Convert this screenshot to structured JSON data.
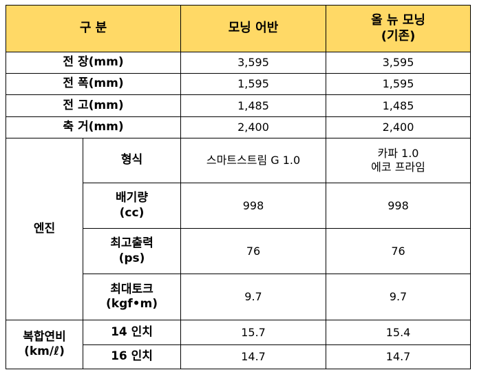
{
  "header": {
    "category": "구 분",
    "col1": "모닝 어반",
    "col2_line1": "올 뉴 모닝",
    "col2_line2": "(기존)"
  },
  "dimensions": [
    {
      "label": "전 장(mm)",
      "urban": "3,595",
      "allnew": "3,595"
    },
    {
      "label": "전 폭(mm)",
      "urban": "1,595",
      "allnew": "1,595"
    },
    {
      "label": "전 고(mm)",
      "urban": "1,485",
      "allnew": "1,485"
    },
    {
      "label": "축 거(mm)",
      "urban": "2,400",
      "allnew": "2,400"
    }
  ],
  "engine": {
    "group_label": "엔진",
    "rows": [
      {
        "label1": "형식",
        "label2": "",
        "urban1": "스마트스트림 G 1.0",
        "urban2": "",
        "allnew1": "카파 1.0",
        "allnew2": "에코 프라임"
      },
      {
        "label1": "배기량",
        "label2": "(cc)",
        "urban1": "998",
        "urban2": "",
        "allnew1": "998",
        "allnew2": ""
      },
      {
        "label1": "최고출력",
        "label2": "(ps)",
        "urban1": "76",
        "urban2": "",
        "allnew1": "76",
        "allnew2": ""
      },
      {
        "label1": "최대토크",
        "label2": "(kgf•m)",
        "urban1": "9.7",
        "urban2": "",
        "allnew1": "9.7",
        "allnew2": ""
      }
    ]
  },
  "fuel": {
    "group_label1": "복합연비",
    "group_label2": "(km/ℓ)",
    "rows": [
      {
        "label": "14 인치",
        "urban": "15.7",
        "allnew": "15.4"
      },
      {
        "label": "16 인치",
        "urban": "14.7",
        "allnew": "14.7"
      }
    ]
  }
}
